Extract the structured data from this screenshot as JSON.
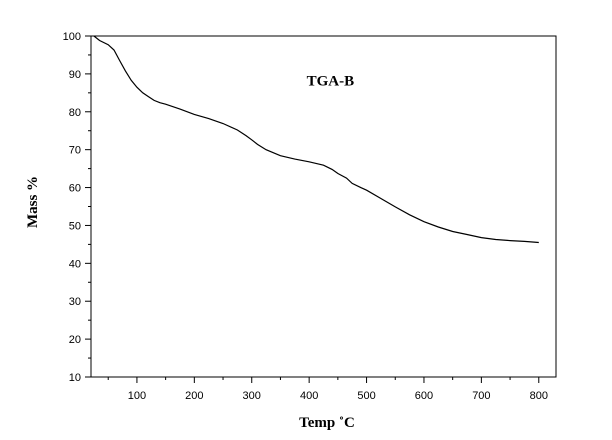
{
  "chart_data": {
    "type": "line",
    "title": "",
    "xlabel": "Temp ˚C",
    "ylabel": "Mass %",
    "xlim": [
      20,
      830
    ],
    "ylim": [
      10,
      100
    ],
    "x_ticks": [
      100,
      200,
      300,
      400,
      500,
      600,
      700,
      800
    ],
    "y_ticks": [
      10,
      20,
      30,
      40,
      50,
      60,
      70,
      80,
      90,
      100
    ],
    "grid": false,
    "legend": "none",
    "annotations": [
      {
        "text": "TGA-B",
        "x": 437,
        "y": 87
      }
    ],
    "series": [
      {
        "color": "#000000",
        "x": [
          25,
          35,
          50,
          60,
          70,
          80,
          90,
          100,
          110,
          120,
          130,
          140,
          150,
          175,
          200,
          225,
          250,
          275,
          290,
          300,
          310,
          325,
          350,
          375,
          400,
          425,
          440,
          450,
          465,
          475,
          490,
          500,
          525,
          550,
          575,
          600,
          625,
          650,
          675,
          700,
          725,
          750,
          775,
          800
        ],
        "y": [
          100,
          98.8,
          97.7,
          96.3,
          93.5,
          90.8,
          88.3,
          86.5,
          85,
          84,
          83,
          82.4,
          82,
          80.7,
          79.3,
          78.2,
          76.9,
          75.2,
          73.7,
          72.6,
          71.4,
          70,
          68.4,
          67.5,
          66.8,
          65.9,
          64.8,
          63.7,
          62.5,
          61.1,
          60,
          59.3,
          57.1,
          54.9,
          52.8,
          51,
          49.6,
          48.4,
          47.6,
          46.8,
          46.3,
          46,
          45.8,
          45.5
        ]
      }
    ]
  }
}
